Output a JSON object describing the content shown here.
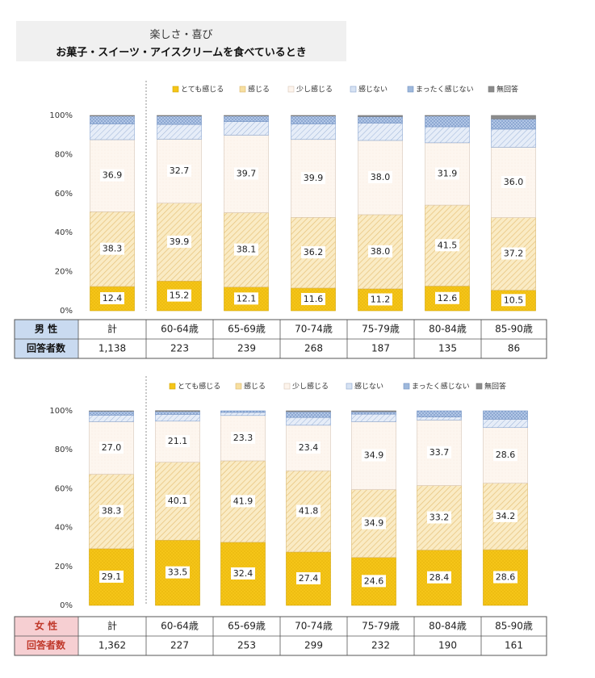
{
  "title": {
    "line1": "楽しさ・喜び",
    "line2": "お菓子・スイーツ・アイスクリームを食べているとき"
  },
  "legend": [
    "とても感じる",
    "感じる",
    "少し感じる",
    "感じない",
    "まったく感じない",
    "無回答"
  ],
  "colors": {
    "very": "#f5c518",
    "feel": "#f7dfa0",
    "little": "#fdf4ec",
    "not": "#d6e2f3",
    "never": "#9fb9dc",
    "na": "#8c8c8c",
    "male_header": "#c9daf0",
    "female_header": "#f6cfd2",
    "female_text": "#c0392b"
  },
  "chart_data": [
    {
      "type": "bar",
      "stacked": true,
      "percent": true,
      "group": "男 性",
      "categories": [
        "計",
        "60-64歳",
        "65-69歳",
        "70-74歳",
        "75-79歳",
        "80-84歳",
        "85-90歳"
      ],
      "respondents": [
        "1,138",
        "223",
        "239",
        "268",
        "187",
        "135",
        "86"
      ],
      "ylim": [
        0,
        100
      ],
      "yticks": [
        "0%",
        "20%",
        "40%",
        "60%",
        "80%",
        "100%"
      ],
      "legend_position": "top",
      "series": [
        {
          "name": "とても感じる",
          "values": [
            12.4,
            15.2,
            12.1,
            11.6,
            11.2,
            12.6,
            10.5
          ]
        },
        {
          "name": "感じる",
          "values": [
            38.3,
            39.9,
            38.1,
            36.2,
            38.0,
            41.5,
            37.2
          ]
        },
        {
          "name": "少し感じる",
          "values": [
            36.9,
            32.7,
            39.7,
            39.9,
            38.0,
            31.9,
            36.0
          ]
        },
        {
          "name": "感じない",
          "values": [
            8.1,
            7.6,
            7.0,
            8.0,
            8.9,
            8.2,
            9.3
          ]
        },
        {
          "name": "まったく感じない",
          "values": [
            4.0,
            4.3,
            2.8,
            4.0,
            3.3,
            5.5,
            5.2
          ]
        },
        {
          "name": "無回答",
          "values": [
            0.3,
            0.3,
            0.3,
            0.3,
            0.6,
            0.3,
            1.8
          ]
        }
      ]
    },
    {
      "type": "bar",
      "stacked": true,
      "percent": true,
      "group": "女 性",
      "categories": [
        "計",
        "60-64歳",
        "65-69歳",
        "70-74歳",
        "75-79歳",
        "80-84歳",
        "85-90歳"
      ],
      "respondents": [
        "1,362",
        "227",
        "253",
        "299",
        "232",
        "190",
        "161"
      ],
      "ylim": [
        0,
        100
      ],
      "yticks": [
        "0%",
        "20%",
        "40%",
        "60%",
        "80%",
        "100%"
      ],
      "legend_position": "top",
      "series": [
        {
          "name": "とても感じる",
          "values": [
            29.1,
            33.5,
            32.4,
            27.4,
            24.6,
            28.4,
            28.6
          ]
        },
        {
          "name": "感じる",
          "values": [
            38.3,
            40.1,
            41.9,
            41.8,
            34.9,
            33.2,
            34.2
          ]
        },
        {
          "name": "少し感じる",
          "values": [
            27.0,
            21.1,
            23.3,
            23.4,
            34.9,
            33.7,
            28.6
          ]
        },
        {
          "name": "感じない",
          "values": [
            3.4,
            3.5,
            1.6,
            4.0,
            3.9,
            1.6,
            4.3
          ]
        },
        {
          "name": "まったく感じない",
          "values": [
            2.0,
            1.5,
            0.8,
            3.0,
            1.3,
            3.1,
            4.3
          ]
        },
        {
          "name": "無回答",
          "values": [
            0.2,
            0.4,
            0.0,
            0.4,
            0.4,
            0.0,
            0.0
          ]
        }
      ]
    }
  ],
  "table_labels": {
    "respondents": "回答者数"
  }
}
